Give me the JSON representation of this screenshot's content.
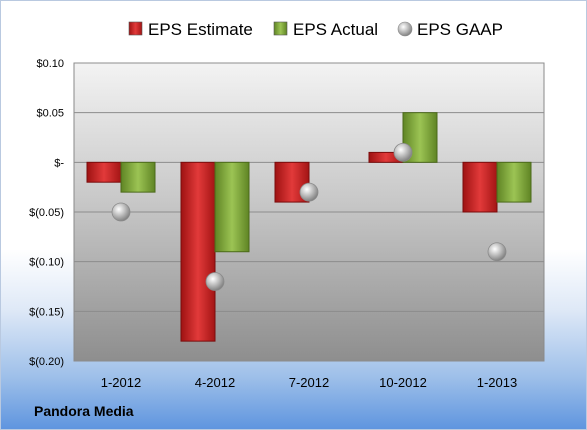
{
  "chart_data": {
    "type": "bar",
    "categories": [
      "1-2012",
      "4-2012",
      "7-2012",
      "10-2012",
      "1-2013"
    ],
    "series": [
      {
        "name": "EPS Estimate",
        "kind": "bar",
        "color": "#cc2222",
        "values": [
          -0.02,
          -0.18,
          -0.04,
          0.01,
          -0.05
        ]
      },
      {
        "name": "EPS Actual",
        "kind": "bar",
        "color": "#7fa33a",
        "values": [
          -0.03,
          -0.09,
          null,
          0.05,
          -0.04
        ]
      },
      {
        "name": "EPS GAAP",
        "kind": "marker",
        "color": "#a9a9a9",
        "values": [
          -0.05,
          -0.12,
          -0.03,
          0.01,
          -0.09
        ]
      }
    ],
    "yticks": [
      0.1,
      0.05,
      0.0,
      -0.05,
      -0.1,
      -0.15,
      -0.2
    ],
    "ytick_labels": [
      "$0.10",
      "$0.05",
      "$-",
      "$(0.05)",
      "$(0.10)",
      "$(0.15)",
      "$(0.20)"
    ],
    "ylim": [
      -0.2,
      0.1
    ],
    "grid": true,
    "legend": "top"
  },
  "footer": {
    "company": "Pandora Media"
  }
}
